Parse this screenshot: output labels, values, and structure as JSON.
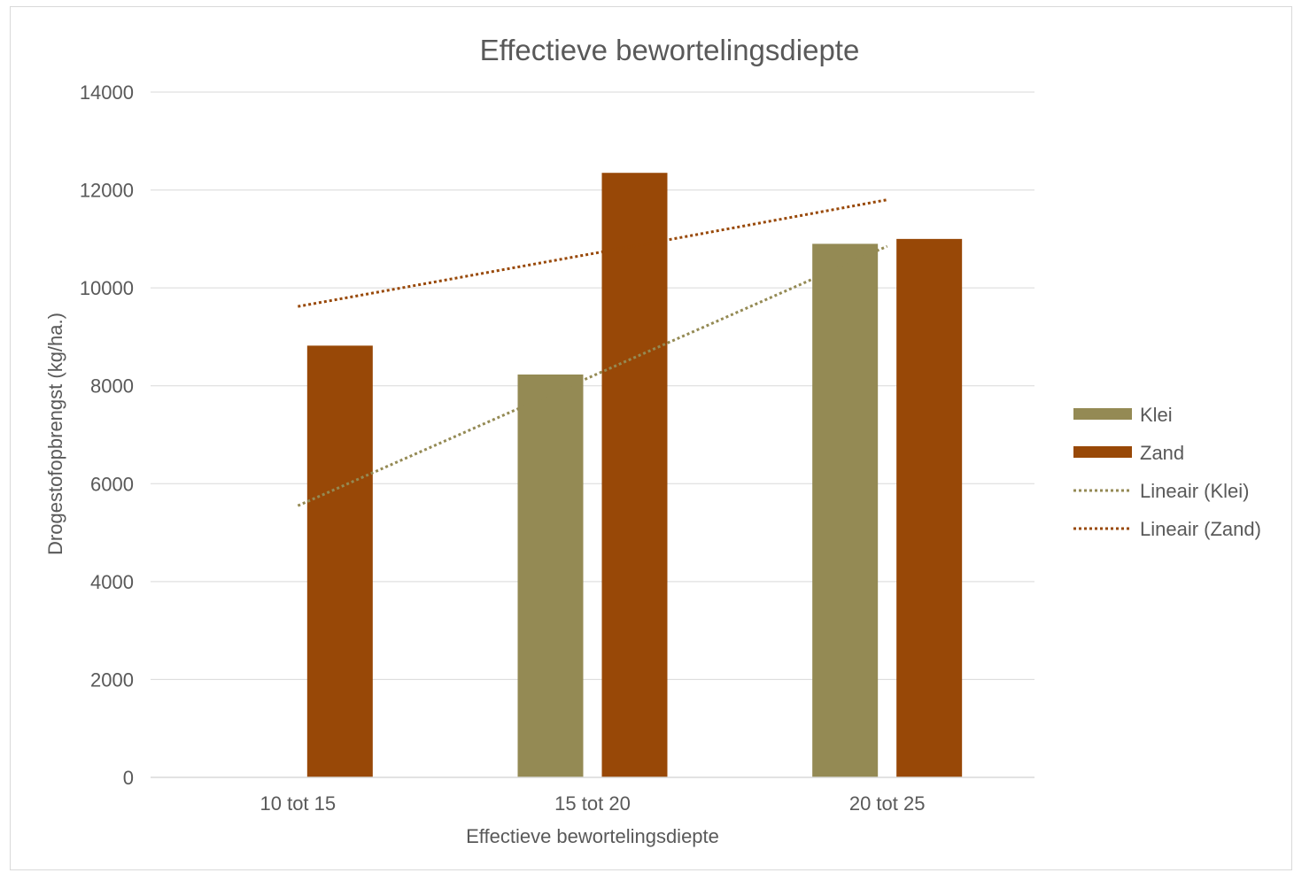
{
  "chart_data": {
    "type": "bar",
    "title": "Effectieve bewortelingsdiepte",
    "xlabel": "Effectieve bewortelingsdiepte",
    "ylabel": "Drogestofopbrengst (kg/ha.)",
    "categories": [
      "10 tot 15",
      "15 tot 20",
      "20 tot 25"
    ],
    "ylim": [
      0,
      14000
    ],
    "yticks": [
      0,
      2000,
      4000,
      6000,
      8000,
      10000,
      12000,
      14000
    ],
    "ytick_labels": [
      "0",
      "2000",
      "4000",
      "6000",
      "8000",
      "10000",
      "12000",
      "14000"
    ],
    "grid": true,
    "legend_position": "right",
    "series": [
      {
        "name": "Klei",
        "color": "#948A54",
        "values": [
          null,
          8230,
          10900
        ]
      },
      {
        "name": "Zand",
        "color": "#984807",
        "values": [
          8820,
          12350,
          11000
        ]
      }
    ],
    "trendlines": [
      {
        "name": "Lineair (Klei)",
        "color": "#948A54",
        "style": "dotted",
        "values": [
          5550,
          8200,
          10850
        ]
      },
      {
        "name": "Lineair (Zand)",
        "color": "#984807",
        "style": "dotted",
        "values": [
          9620,
          10700,
          11800
        ]
      }
    ]
  }
}
